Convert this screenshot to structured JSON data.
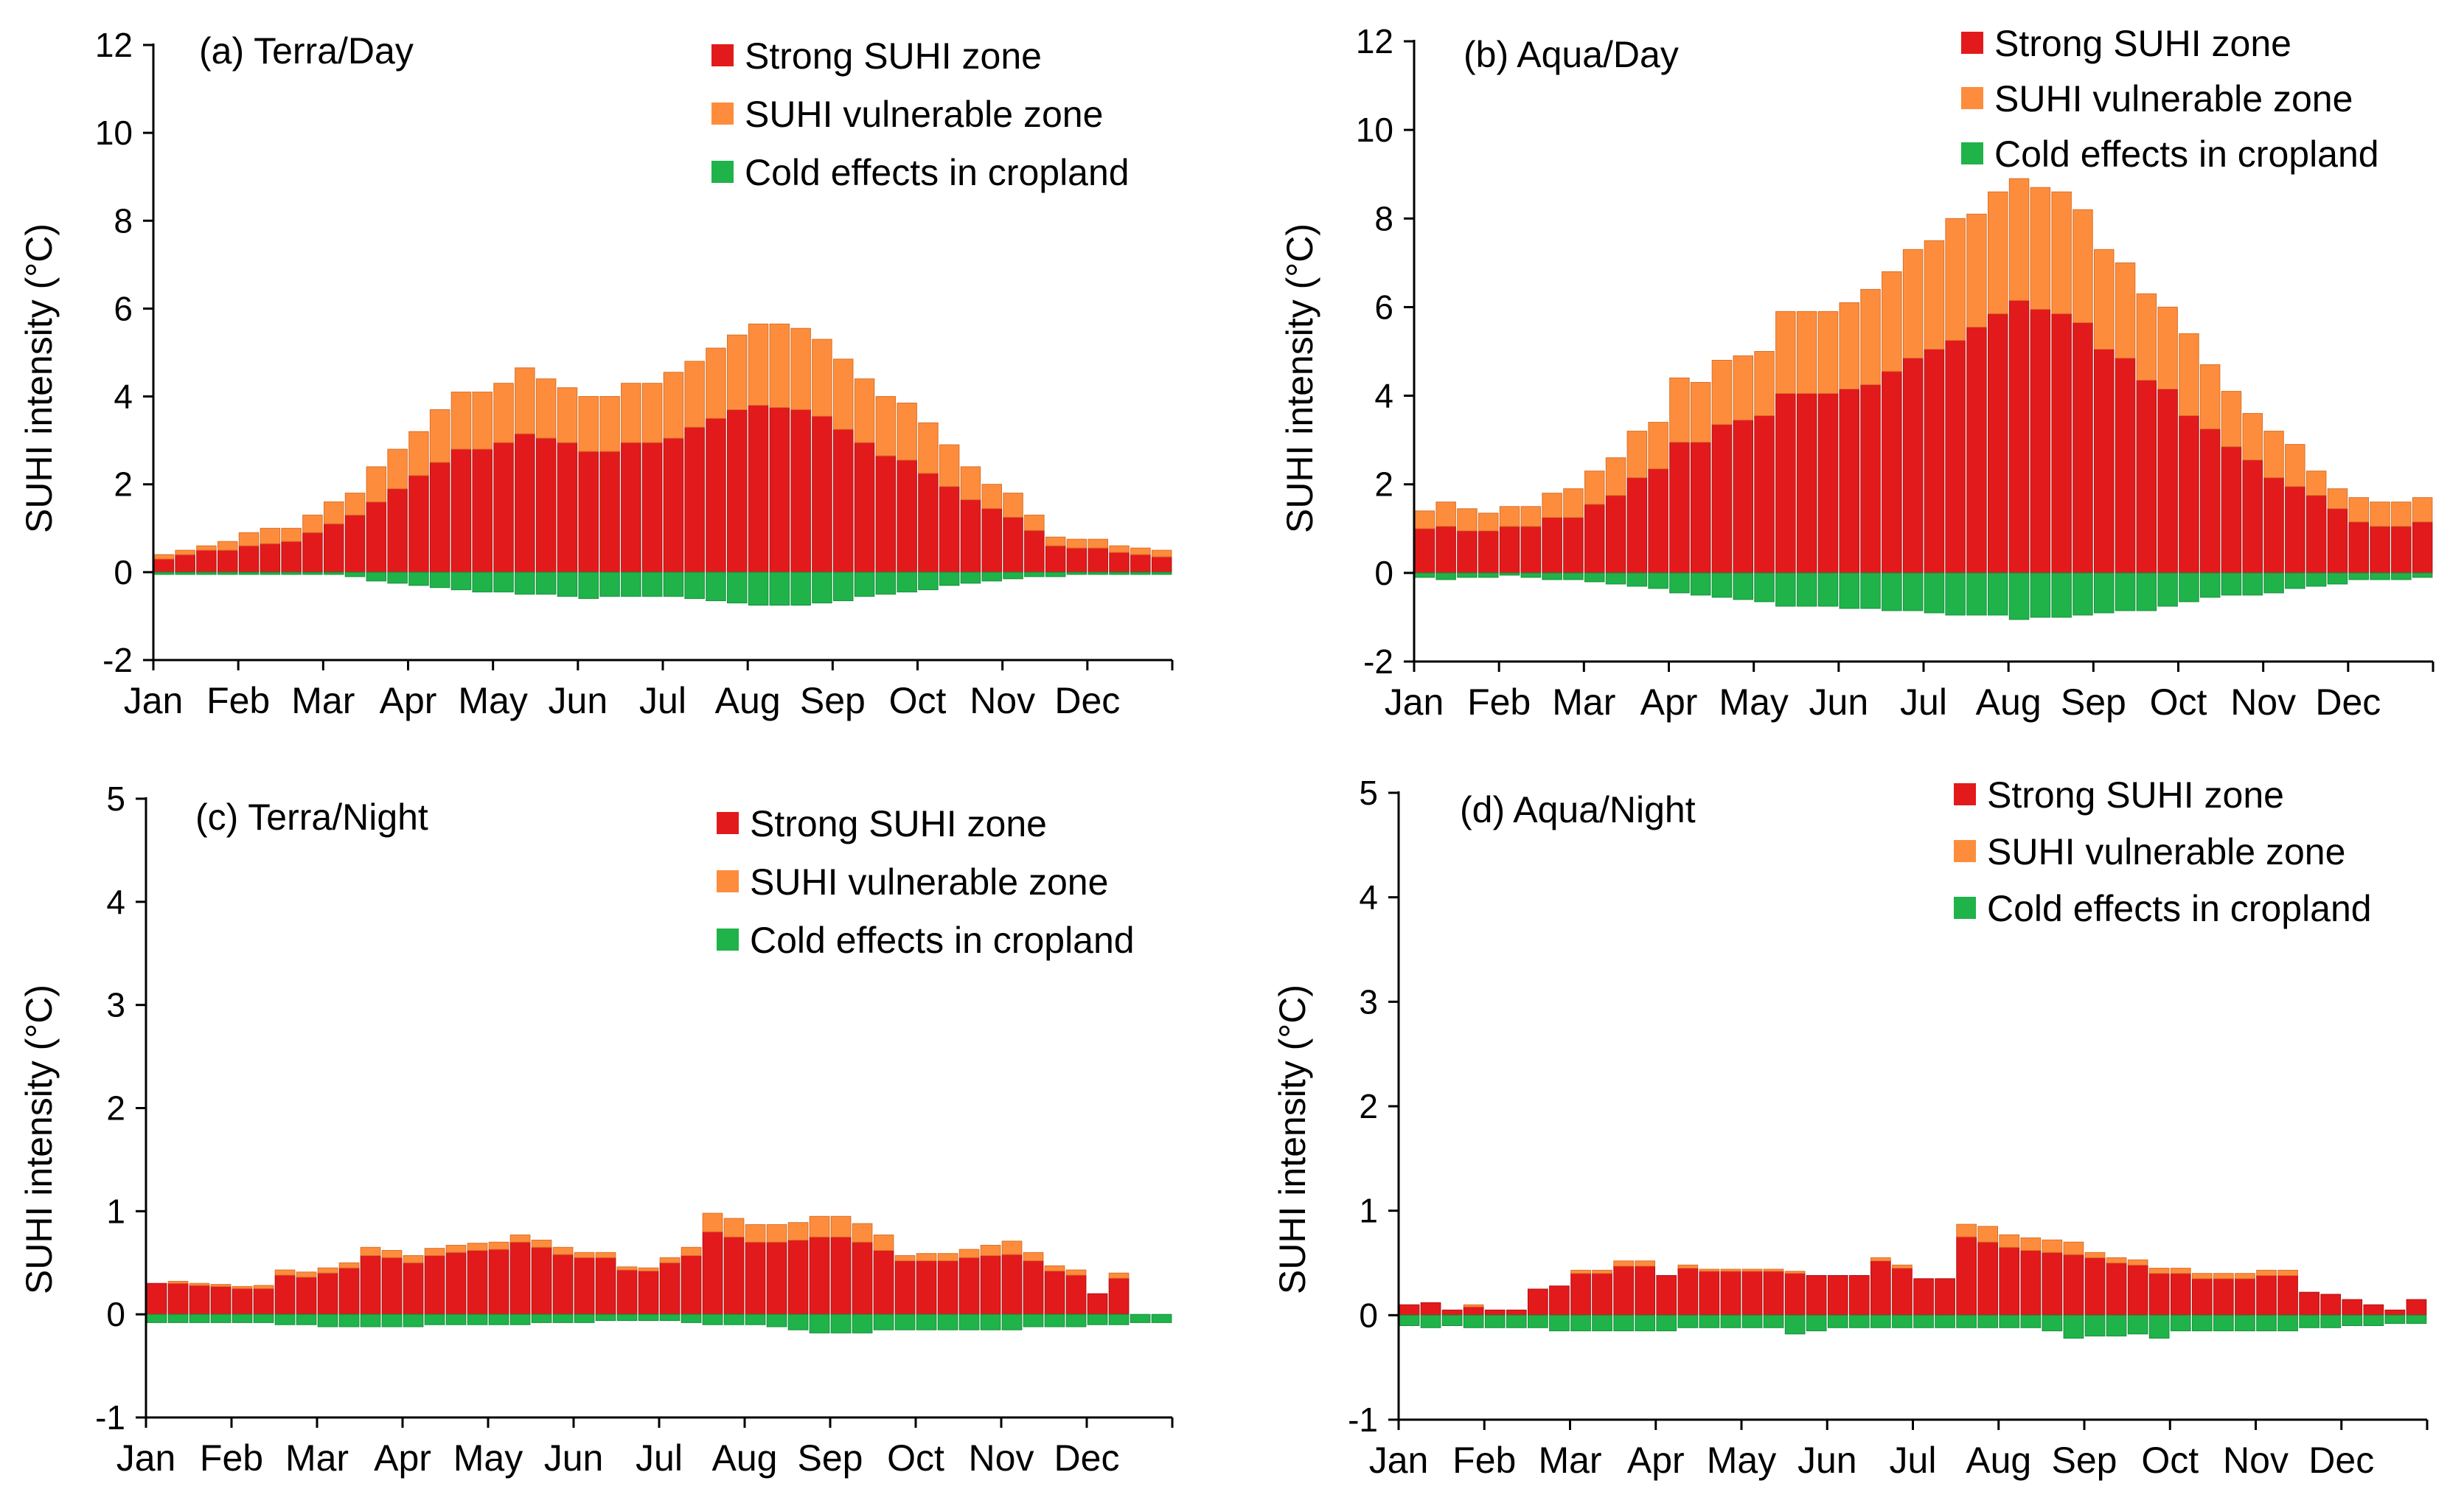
{
  "colors": {
    "strong": "#e31a1c",
    "vulnerable": "#fd8d3c",
    "cold": "#1fb34a",
    "strong_edge": "#b01010",
    "vulnerable_edge": "#d9702a",
    "cold_edge": "#16903a"
  },
  "chart_data": [
    {
      "id": "a",
      "type": "bar",
      "stacked": true,
      "title": "(a) Terra/Day",
      "ylabel": "SUHI intensity (°C)",
      "ylim": [
        -2,
        12
      ],
      "yticks": [
        "12",
        "10",
        "8",
        "6",
        "4",
        "2",
        "0",
        "-2"
      ],
      "ytick_values": [
        12,
        10,
        8,
        6,
        4,
        2,
        0,
        -2
      ],
      "months": [
        "Jan",
        "Feb",
        "Mar",
        "Apr",
        "May",
        "Jun",
        "Jul",
        "Aug",
        "Sep",
        "Oct",
        "Nov",
        "Dec"
      ],
      "legend": [
        "Strong SUHI zone",
        "SUHI vulnerable zone",
        "Cold effects in cropland"
      ],
      "series": [
        {
          "name": "Strong SUHI zone",
          "values": [
            0.3,
            0.4,
            0.5,
            0.5,
            0.6,
            0.65,
            0.7,
            0.9,
            1.1,
            1.3,
            1.6,
            1.9,
            2.2,
            2.5,
            2.8,
            2.8,
            2.95,
            3.15,
            3.05,
            2.95,
            2.75,
            2.75,
            2.95,
            2.95,
            3.05,
            3.3,
            3.5,
            3.7,
            3.8,
            3.75,
            3.7,
            3.55,
            3.25,
            2.95,
            2.65,
            2.55,
            2.25,
            1.95,
            1.65,
            1.45,
            1.25,
            0.95,
            0.6,
            0.55,
            0.55,
            0.45,
            0.4,
            0.35
          ]
        },
        {
          "name": "SUHI vulnerable zone",
          "values": [
            0.1,
            0.1,
            0.1,
            0.2,
            0.3,
            0.35,
            0.3,
            0.4,
            0.5,
            0.5,
            0.8,
            0.9,
            1.0,
            1.2,
            1.3,
            1.3,
            1.35,
            1.5,
            1.35,
            1.25,
            1.25,
            1.25,
            1.35,
            1.35,
            1.5,
            1.5,
            1.6,
            1.7,
            1.85,
            1.9,
            1.85,
            1.75,
            1.6,
            1.45,
            1.35,
            1.3,
            1.15,
            0.95,
            0.75,
            0.55,
            0.55,
            0.35,
            0.2,
            0.2,
            0.2,
            0.15,
            0.15,
            0.15
          ]
        },
        {
          "name": "Cold effects in cropland",
          "values": [
            -0.05,
            -0.05,
            -0.05,
            -0.05,
            -0.05,
            -0.05,
            -0.05,
            -0.05,
            -0.05,
            -0.1,
            -0.2,
            -0.25,
            -0.3,
            -0.35,
            -0.4,
            -0.45,
            -0.45,
            -0.5,
            -0.5,
            -0.55,
            -0.6,
            -0.55,
            -0.55,
            -0.55,
            -0.55,
            -0.6,
            -0.65,
            -0.7,
            -0.75,
            -0.75,
            -0.75,
            -0.7,
            -0.65,
            -0.55,
            -0.5,
            -0.45,
            -0.4,
            -0.3,
            -0.25,
            -0.2,
            -0.15,
            -0.1,
            -0.1,
            -0.05,
            -0.05,
            -0.05,
            -0.05,
            -0.05
          ]
        }
      ]
    },
    {
      "id": "b",
      "type": "bar",
      "stacked": true,
      "title": "(b) Aqua/Day",
      "ylabel": "SUHI intensity (°C)",
      "ylim": [
        -2,
        12
      ],
      "yticks": [
        "12",
        "10",
        "8",
        "6",
        "4",
        "2",
        "0",
        "-2"
      ],
      "ytick_values": [
        12,
        10,
        8,
        6,
        4,
        2,
        0,
        -2
      ],
      "months": [
        "Jan",
        "Feb",
        "Mar",
        "Apr",
        "May",
        "Jun",
        "Jul",
        "Aug",
        "Sep",
        "Oct",
        "Nov",
        "Dec"
      ],
      "legend": [
        "Strong SUHI zone",
        "SUHI vulnerable zone",
        "Cold effects in cropland"
      ],
      "series": [
        {
          "name": "Strong SUHI zone",
          "values": [
            1.0,
            1.05,
            0.95,
            0.95,
            1.05,
            1.05,
            1.25,
            1.25,
            1.55,
            1.75,
            2.15,
            2.35,
            2.95,
            2.95,
            3.35,
            3.45,
            3.55,
            4.05,
            4.05,
            4.05,
            4.15,
            4.25,
            4.55,
            4.85,
            5.05,
            5.25,
            5.55,
            5.85,
            6.15,
            5.95,
            5.85,
            5.65,
            5.05,
            4.85,
            4.35,
            4.15,
            3.55,
            3.25,
            2.85,
            2.55,
            2.15,
            1.95,
            1.75,
            1.45,
            1.15,
            1.05,
            1.05,
            1.15
          ]
        },
        {
          "name": "SUHI vulnerable zone",
          "values": [
            0.4,
            0.55,
            0.5,
            0.4,
            0.45,
            0.45,
            0.55,
            0.65,
            0.75,
            0.85,
            1.05,
            1.05,
            1.45,
            1.35,
            1.45,
            1.45,
            1.45,
            1.85,
            1.85,
            1.85,
            1.95,
            2.15,
            2.25,
            2.45,
            2.45,
            2.75,
            2.55,
            2.75,
            2.75,
            2.75,
            2.75,
            2.55,
            2.25,
            2.15,
            1.95,
            1.85,
            1.85,
            1.45,
            1.25,
            1.05,
            1.05,
            0.95,
            0.55,
            0.45,
            0.55,
            0.55,
            0.55,
            0.55
          ]
        },
        {
          "name": "Cold effects in cropland",
          "values": [
            -0.1,
            -0.15,
            -0.1,
            -0.1,
            -0.05,
            -0.1,
            -0.15,
            -0.15,
            -0.2,
            -0.25,
            -0.3,
            -0.35,
            -0.45,
            -0.5,
            -0.55,
            -0.6,
            -0.65,
            -0.75,
            -0.75,
            -0.75,
            -0.8,
            -0.8,
            -0.85,
            -0.85,
            -0.9,
            -0.95,
            -0.95,
            -0.95,
            -1.05,
            -1.0,
            -1.0,
            -0.95,
            -0.9,
            -0.85,
            -0.85,
            -0.75,
            -0.65,
            -0.55,
            -0.5,
            -0.5,
            -0.45,
            -0.35,
            -0.3,
            -0.25,
            -0.15,
            -0.15,
            -0.15,
            -0.1
          ]
        }
      ]
    },
    {
      "id": "c",
      "type": "bar",
      "stacked": true,
      "title": "(c) Terra/Night",
      "ylabel": "SUHI intensity (°C)",
      "ylim": [
        -1,
        5
      ],
      "yticks": [
        "5",
        "4",
        "3",
        "2",
        "1",
        "0",
        "-1"
      ],
      "ytick_values": [
        5,
        4,
        3,
        2,
        1,
        0,
        -1
      ],
      "months": [
        "Jan",
        "Feb",
        "Mar",
        "Apr",
        "May",
        "Jun",
        "Jul",
        "Aug",
        "Sep",
        "Oct",
        "Nov",
        "Dec"
      ],
      "legend": [
        "Strong SUHI zone",
        "SUHI vulnerable zone",
        "Cold effects in cropland"
      ],
      "series": [
        {
          "name": "Strong SUHI zone",
          "values": [
            0.3,
            0.3,
            0.28,
            0.27,
            0.25,
            0.25,
            0.38,
            0.36,
            0.4,
            0.45,
            0.57,
            0.55,
            0.5,
            0.57,
            0.6,
            0.62,
            0.63,
            0.7,
            0.65,
            0.58,
            0.55,
            0.55,
            0.43,
            0.42,
            0.5,
            0.57,
            0.8,
            0.75,
            0.7,
            0.7,
            0.72,
            0.75,
            0.75,
            0.7,
            0.62,
            0.52,
            0.52,
            0.52,
            0.55,
            0.57,
            0.58,
            0.52,
            0.42,
            0.38,
            0.2,
            0.35,
            0.0,
            0.0
          ]
        },
        {
          "name": "SUHI vulnerable zone",
          "values": [
            0.0,
            0.02,
            0.02,
            0.02,
            0.02,
            0.03,
            0.05,
            0.05,
            0.05,
            0.05,
            0.08,
            0.07,
            0.07,
            0.07,
            0.07,
            0.07,
            0.07,
            0.07,
            0.07,
            0.07,
            0.05,
            0.05,
            0.03,
            0.03,
            0.05,
            0.08,
            0.18,
            0.18,
            0.17,
            0.17,
            0.17,
            0.2,
            0.2,
            0.18,
            0.15,
            0.05,
            0.07,
            0.07,
            0.08,
            0.1,
            0.13,
            0.08,
            0.05,
            0.05,
            0.0,
            0.05,
            0.0,
            0.0
          ]
        },
        {
          "name": "Cold effects in cropland",
          "values": [
            -0.08,
            -0.08,
            -0.08,
            -0.08,
            -0.08,
            -0.08,
            -0.1,
            -0.1,
            -0.12,
            -0.12,
            -0.12,
            -0.12,
            -0.12,
            -0.1,
            -0.1,
            -0.1,
            -0.1,
            -0.1,
            -0.08,
            -0.08,
            -0.08,
            -0.06,
            -0.06,
            -0.06,
            -0.06,
            -0.08,
            -0.1,
            -0.1,
            -0.1,
            -0.12,
            -0.15,
            -0.18,
            -0.18,
            -0.18,
            -0.15,
            -0.15,
            -0.15,
            -0.15,
            -0.15,
            -0.15,
            -0.15,
            -0.12,
            -0.12,
            -0.12,
            -0.1,
            -0.1,
            -0.08,
            -0.08
          ]
        }
      ]
    },
    {
      "id": "d",
      "type": "bar",
      "stacked": true,
      "title": "(d) Aqua/Night",
      "ylabel": "SUHI intensity (°C)",
      "ylim": [
        -1,
        5
      ],
      "yticks": [
        "5",
        "4",
        "3",
        "2",
        "1",
        "0",
        "-1"
      ],
      "ytick_values": [
        5,
        4,
        3,
        2,
        1,
        0,
        -1
      ],
      "months": [
        "Jan",
        "Feb",
        "Mar",
        "Apr",
        "May",
        "Jun",
        "Jul",
        "Aug",
        "Sep",
        "Oct",
        "Nov",
        "Dec"
      ],
      "legend": [
        "Strong SUHI zone",
        "SUHI vulnerable zone",
        "Cold effects in cropland"
      ],
      "series": [
        {
          "name": "Strong SUHI zone",
          "values": [
            0.1,
            0.12,
            0.05,
            0.08,
            0.05,
            0.05,
            0.25,
            0.28,
            0.4,
            0.4,
            0.47,
            0.47,
            0.38,
            0.45,
            0.42,
            0.42,
            0.42,
            0.42,
            0.4,
            0.38,
            0.38,
            0.38,
            0.52,
            0.45,
            0.35,
            0.35,
            0.75,
            0.7,
            0.65,
            0.62,
            0.6,
            0.58,
            0.55,
            0.5,
            0.48,
            0.4,
            0.4,
            0.35,
            0.35,
            0.35,
            0.38,
            0.38,
            0.22,
            0.2,
            0.15,
            0.1,
            0.05,
            0.15
          ]
        },
        {
          "name": "SUHI vulnerable zone",
          "values": [
            0.0,
            0.0,
            0.0,
            0.02,
            0.0,
            0.0,
            0.0,
            0.0,
            0.03,
            0.03,
            0.05,
            0.05,
            0.0,
            0.03,
            0.02,
            0.02,
            0.02,
            0.02,
            0.02,
            0.0,
            0.0,
            0.0,
            0.03,
            0.03,
            0.0,
            0.0,
            0.12,
            0.15,
            0.12,
            0.12,
            0.12,
            0.12,
            0.05,
            0.05,
            0.05,
            0.05,
            0.05,
            0.05,
            0.05,
            0.05,
            0.05,
            0.05,
            0.0,
            0.0,
            0.0,
            0.0,
            0.0,
            0.0
          ]
        },
        {
          "name": "Cold effects in cropland",
          "values": [
            -0.1,
            -0.12,
            -0.1,
            -0.12,
            -0.12,
            -0.12,
            -0.12,
            -0.15,
            -0.15,
            -0.15,
            -0.15,
            -0.15,
            -0.15,
            -0.12,
            -0.12,
            -0.12,
            -0.12,
            -0.12,
            -0.18,
            -0.15,
            -0.12,
            -0.12,
            -0.12,
            -0.12,
            -0.12,
            -0.12,
            -0.12,
            -0.12,
            -0.12,
            -0.12,
            -0.15,
            -0.22,
            -0.2,
            -0.2,
            -0.18,
            -0.22,
            -0.15,
            -0.15,
            -0.15,
            -0.15,
            -0.15,
            -0.15,
            -0.12,
            -0.12,
            -0.1,
            -0.1,
            -0.08,
            -0.08
          ]
        }
      ]
    }
  ]
}
